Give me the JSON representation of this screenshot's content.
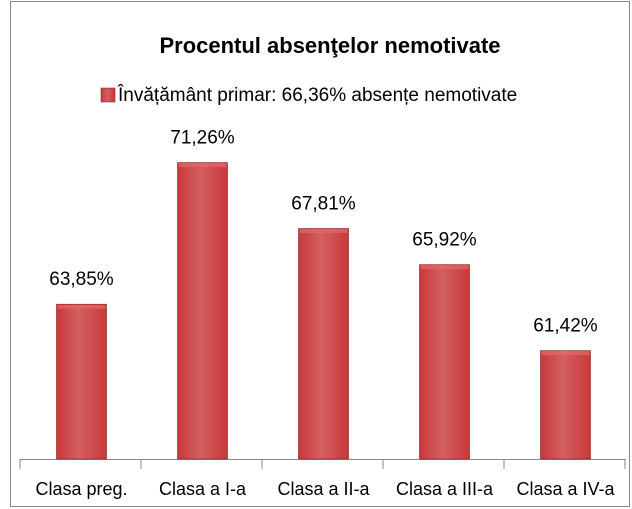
{
  "chart_data": {
    "type": "bar",
    "title": "Procentul absenţelor nemotivate",
    "categories": [
      "Clasa preg.",
      "Clasa a I-a",
      "Clasa a II-a",
      "Clasa a III-a",
      "Clasa a IV-a"
    ],
    "series": [
      {
        "name": "Învățământ primar:  66,36% absențe nemotivate",
        "color": "#c8383a",
        "values": [
          63.85,
          71.26,
          67.81,
          65.92,
          61.42
        ],
        "value_labels": [
          "63,85%",
          "71,26%",
          "67,81%",
          "65,92%",
          "61,42%"
        ]
      }
    ],
    "ylim": [
      55.75,
      73.75
    ],
    "legend": "top"
  }
}
